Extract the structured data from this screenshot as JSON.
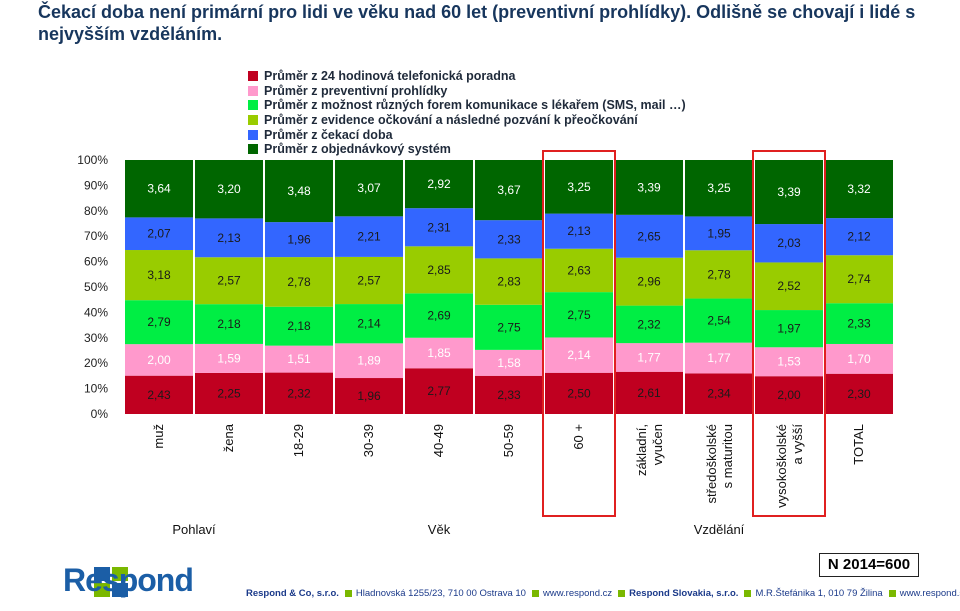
{
  "title": "Čekací doba není primární pro lidi ve věku nad 60 let (preventivní prohlídky). Odlišně se chovají i lidé s nejvyšším vzděláním.",
  "colors": {
    "series": [
      "#c00020",
      "#ff99cc",
      "#00ee44",
      "#99cc00",
      "#3366ff",
      "#006600"
    ],
    "highlight": "#e02020",
    "brand": "#1b5ea6",
    "footer_accent": "#7ab800"
  },
  "chart_data": {
    "type": "bar",
    "stacked": true,
    "normalized": true,
    "categories": [
      "muž",
      "žena",
      "18-29",
      "30-39",
      "40-49",
      "50-59",
      "60 +",
      "základní, vyučen",
      "středoškolské s maturitou",
      "vysokoškolské a vyšší",
      "TOTAL"
    ],
    "category_lines": [
      [
        "muž"
      ],
      [
        "žena"
      ],
      [
        "18-29"
      ],
      [
        "30-39"
      ],
      [
        "40-49"
      ],
      [
        "50-59"
      ],
      [
        "60 +"
      ],
      [
        "základní,",
        "vyučen"
      ],
      [
        "středoškolské",
        "s maturitou"
      ],
      [
        "vysokoškolské",
        "a vyšší"
      ],
      [
        "TOTAL"
      ]
    ],
    "series": [
      {
        "name": "Průměr z objednávkový systém",
        "values": [
          2.43,
          2.25,
          2.32,
          1.96,
          2.77,
          2.33,
          2.5,
          2.61,
          2.34,
          2.0,
          2.3
        ],
        "labels": [
          "2,43",
          "2,25",
          "2,32",
          "1,96",
          "2,77",
          "2,33",
          "2,50",
          "2,61",
          "2,34",
          "2,00",
          "2,30"
        ]
      },
      {
        "name": "Průměr z čekací doba",
        "values": [
          2.0,
          1.59,
          1.51,
          1.89,
          1.85,
          1.58,
          2.14,
          1.77,
          1.77,
          1.53,
          1.7
        ],
        "labels": [
          "2,00",
          "1,59",
          "1,51",
          "1,89",
          "1,85",
          "1,58",
          "2,14",
          "1,77",
          "1,77",
          "1,53",
          "1,70"
        ]
      },
      {
        "name": "Průměr z evidence očkování a následné pozvání k přeočkování",
        "values": [
          2.79,
          2.18,
          2.18,
          2.14,
          2.69,
          2.75,
          2.75,
          2.32,
          2.54,
          1.97,
          2.33
        ],
        "labels": [
          "2,79",
          "2,18",
          "2,18",
          "2,14",
          "2,69",
          "2,75",
          "2,75",
          "2,32",
          "2,54",
          "1,97",
          "2,33"
        ]
      },
      {
        "name": "Průměr z možnost různých forem komunikace s lékařem (SMS, mail …)",
        "values": [
          3.18,
          2.57,
          2.78,
          2.57,
          2.85,
          2.83,
          2.63,
          2.96,
          2.78,
          2.52,
          2.74
        ],
        "labels": [
          "3,18",
          "2,57",
          "2,78",
          "2,57",
          "2,85",
          "2,83",
          "2,63",
          "2,96",
          "2,78",
          "2,52",
          "2,74"
        ]
      },
      {
        "name": "Průměr z preventivní prohlídky",
        "values": [
          2.07,
          2.13,
          1.96,
          2.21,
          2.31,
          2.33,
          2.13,
          2.65,
          1.95,
          2.03,
          2.12
        ],
        "labels": [
          "2,07",
          "2,13",
          "1,96",
          "2,21",
          "2,31",
          "2,33",
          "2,13",
          "2,65",
          "1,95",
          "2,03",
          "2,12"
        ]
      },
      {
        "name": "Průměr z 24 hodinová telefonická poradna",
        "values": [
          3.64,
          3.2,
          3.48,
          3.07,
          2.92,
          3.67,
          3.25,
          3.39,
          3.25,
          3.39,
          3.32
        ],
        "labels": [
          "3,64",
          "3,20",
          "3,48",
          "3,07",
          "2,92",
          "3,67",
          "3,25",
          "3,39",
          "3,25",
          "3,39",
          "3,32"
        ]
      }
    ],
    "legend_order": [
      {
        "name": "Průměr z 24 hodinová telefonická poradna",
        "color": "#c00020"
      },
      {
        "name": "Průměr z preventivní prohlídky",
        "color": "#ff99cc"
      },
      {
        "name": "Průměr z možnost různých forem komunikace s lékařem (SMS, mail …)",
        "color": "#00ee44"
      },
      {
        "name": "Průměr z evidence očkování a následné pozvání k přeočkování",
        "color": "#99cc00"
      },
      {
        "name": "Průměr z čekací doba",
        "color": "#3366ff"
      },
      {
        "name": "Průměr z objednávkový systém",
        "color": "#006600"
      }
    ],
    "y_ticks": [
      "0%",
      "10%",
      "20%",
      "30%",
      "40%",
      "50%",
      "60%",
      "70%",
      "80%",
      "90%",
      "100%"
    ],
    "ylim": [
      0,
      100
    ],
    "groups": [
      {
        "name": "Pohlaví",
        "from": 0,
        "to": 1
      },
      {
        "name": "Věk",
        "from": 2,
        "to": 6
      },
      {
        "name": "Vzdělání",
        "from": 7,
        "to": 9
      }
    ],
    "highlighted_categories": [
      6,
      9
    ],
    "legend_position": "top"
  },
  "sample_note": "N 2014=600",
  "brand": {
    "logo_text": "Respond"
  },
  "footer": {
    "company_cz": "Respond & Co, s.r.o.",
    "address_cz": "Hladnovská 1255/23, 710 00  Ostrava 10",
    "web_cz": "www.respond.cz",
    "company_sk": "Respond Slovakia, s.r.o.",
    "address_sk": "M.R.Štefánika 1, 010 79  Žilina",
    "web_sk": "www.respond.sk"
  }
}
